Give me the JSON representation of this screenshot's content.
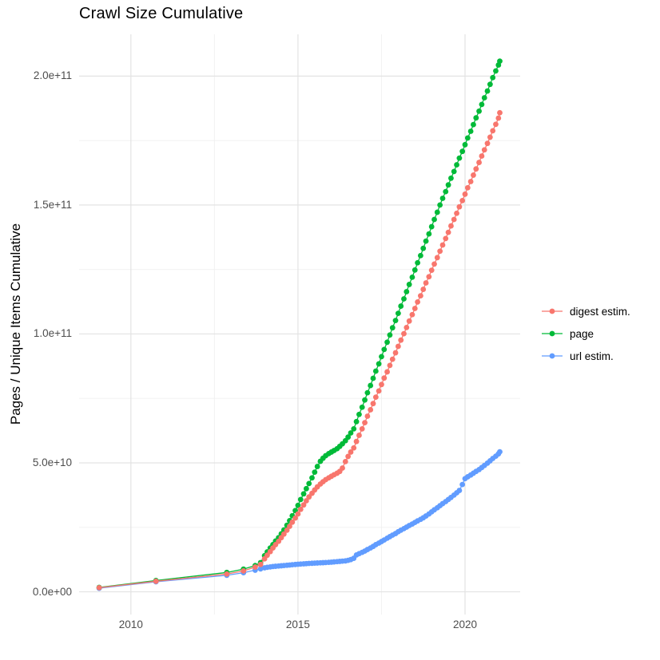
{
  "chart_data": {
    "type": "scatter",
    "title": "Crawl Size Cumulative",
    "xlabel": "",
    "ylabel": "Pages / Unique Items Cumulative",
    "value_unit": "billions (1e9) of pages / unique items",
    "xlim": [
      2008.45,
      2021.65
    ],
    "ylim": [
      -8.8,
      216.2
    ],
    "grid": "on",
    "legend_position": "right",
    "x_ticks": [
      {
        "value": 2010,
        "label": "2010"
      },
      {
        "value": 2015,
        "label": "2015"
      },
      {
        "value": 2020,
        "label": "2020"
      }
    ],
    "x_minor": [
      2012.5,
      2017.5
    ],
    "y_ticks": [
      {
        "value": 0,
        "label": "0.0e+00"
      },
      {
        "value": 50,
        "label": "5.0e+10"
      },
      {
        "value": 100,
        "label": "1.0e+11"
      },
      {
        "value": 150,
        "label": "1.5e+11"
      },
      {
        "value": 200,
        "label": "2.0e+11"
      }
    ],
    "y_minor": [
      25,
      75,
      125,
      175
    ],
    "legend": [
      {
        "label": "digest estim.",
        "color": "#F8766D"
      },
      {
        "label": "page",
        "color": "#00BA38"
      },
      {
        "label": "url estim.",
        "color": "#619CFF"
      }
    ],
    "series": [
      {
        "name": "url estim.",
        "color": "#619CFF",
        "points": [
          [
            2009.05,
            1.4
          ],
          [
            2010.75,
            3.9
          ],
          [
            2012.87,
            6.4
          ],
          [
            2013.37,
            7.4
          ],
          [
            2013.72,
            8.4
          ],
          [
            2013.88,
            8.9
          ],
          [
            2014.0,
            9.3
          ],
          [
            2014.08,
            9.5
          ],
          [
            2014.17,
            9.65
          ],
          [
            2014.25,
            9.8
          ],
          [
            2014.33,
            9.9
          ],
          [
            2014.42,
            10.0
          ],
          [
            2014.5,
            10.1
          ],
          [
            2014.58,
            10.2
          ],
          [
            2014.67,
            10.3
          ],
          [
            2014.75,
            10.4
          ],
          [
            2014.83,
            10.5
          ],
          [
            2014.92,
            10.6
          ],
          [
            2015.0,
            10.7
          ],
          [
            2015.08,
            10.78
          ],
          [
            2015.17,
            10.85
          ],
          [
            2015.25,
            10.92
          ],
          [
            2015.33,
            11.0
          ],
          [
            2015.42,
            11.06
          ],
          [
            2015.5,
            11.12
          ],
          [
            2015.58,
            11.18
          ],
          [
            2015.67,
            11.24
          ],
          [
            2015.75,
            11.3
          ],
          [
            2015.83,
            11.36
          ],
          [
            2015.92,
            11.43
          ],
          [
            2016.0,
            11.5
          ],
          [
            2016.08,
            11.6
          ],
          [
            2016.17,
            11.7
          ],
          [
            2016.25,
            11.8
          ],
          [
            2016.33,
            11.9
          ],
          [
            2016.42,
            12.0
          ],
          [
            2016.5,
            12.2
          ],
          [
            2016.58,
            12.5
          ],
          [
            2016.67,
            13.0
          ],
          [
            2016.75,
            14.3
          ],
          [
            2016.83,
            14.8
          ],
          [
            2016.92,
            15.3
          ],
          [
            2017.0,
            15.8
          ],
          [
            2017.08,
            16.4
          ],
          [
            2017.17,
            17.0
          ],
          [
            2017.25,
            17.6
          ],
          [
            2017.33,
            18.3
          ],
          [
            2017.42,
            18.9
          ],
          [
            2017.5,
            19.5
          ],
          [
            2017.58,
            20.1
          ],
          [
            2017.67,
            20.8
          ],
          [
            2017.75,
            21.4
          ],
          [
            2017.83,
            22.0
          ],
          [
            2017.92,
            22.6
          ],
          [
            2018.0,
            23.3
          ],
          [
            2018.08,
            23.9
          ],
          [
            2018.17,
            24.5
          ],
          [
            2018.25,
            25.1
          ],
          [
            2018.33,
            25.7
          ],
          [
            2018.42,
            26.3
          ],
          [
            2018.5,
            26.9
          ],
          [
            2018.58,
            27.5
          ],
          [
            2018.67,
            28.1
          ],
          [
            2018.75,
            28.7
          ],
          [
            2018.83,
            29.4
          ],
          [
            2018.92,
            30.2
          ],
          [
            2019.0,
            31.0
          ],
          [
            2019.08,
            31.8
          ],
          [
            2019.17,
            32.6
          ],
          [
            2019.25,
            33.4
          ],
          [
            2019.33,
            34.2
          ],
          [
            2019.42,
            35.0
          ],
          [
            2019.5,
            35.8
          ],
          [
            2019.58,
            36.6
          ],
          [
            2019.67,
            37.5
          ],
          [
            2019.75,
            38.4
          ],
          [
            2019.83,
            39.3
          ],
          [
            2019.92,
            41.6
          ],
          [
            2020.0,
            43.9
          ],
          [
            2020.08,
            44.6
          ],
          [
            2020.17,
            45.3
          ],
          [
            2020.25,
            46.0
          ],
          [
            2020.33,
            46.7
          ],
          [
            2020.42,
            47.4
          ],
          [
            2020.5,
            48.2
          ],
          [
            2020.58,
            49.0
          ],
          [
            2020.67,
            49.9
          ],
          [
            2020.75,
            50.8
          ],
          [
            2020.83,
            51.7
          ],
          [
            2020.92,
            52.6
          ],
          [
            2021.0,
            53.5
          ],
          [
            2021.04,
            54.3
          ]
        ]
      },
      {
        "name": "page",
        "color": "#00BA38",
        "points": [
          [
            2009.05,
            1.7
          ],
          [
            2010.75,
            4.4
          ],
          [
            2012.87,
            7.5
          ],
          [
            2013.37,
            8.8
          ],
          [
            2013.72,
            10.2
          ],
          [
            2013.88,
            11.3
          ],
          [
            2014.0,
            14.0
          ],
          [
            2014.08,
            15.5
          ],
          [
            2014.17,
            17.0
          ],
          [
            2014.25,
            18.3
          ],
          [
            2014.33,
            19.7
          ],
          [
            2014.42,
            21.0
          ],
          [
            2014.5,
            22.5
          ],
          [
            2014.58,
            24.0
          ],
          [
            2014.67,
            25.8
          ],
          [
            2014.75,
            27.6
          ],
          [
            2014.83,
            29.5
          ],
          [
            2014.92,
            31.5
          ],
          [
            2015.0,
            33.5
          ],
          [
            2015.08,
            35.8
          ],
          [
            2015.17,
            38.0
          ],
          [
            2015.25,
            40.0
          ],
          [
            2015.33,
            42.0
          ],
          [
            2015.42,
            44.2
          ],
          [
            2015.5,
            46.4
          ],
          [
            2015.58,
            48.6
          ],
          [
            2015.67,
            50.6
          ],
          [
            2015.75,
            51.8
          ],
          [
            2015.83,
            52.8
          ],
          [
            2015.92,
            53.6
          ],
          [
            2016.0,
            54.2
          ],
          [
            2016.08,
            54.8
          ],
          [
            2016.17,
            55.5
          ],
          [
            2016.25,
            56.4
          ],
          [
            2016.33,
            57.4
          ],
          [
            2016.42,
            58.6
          ],
          [
            2016.5,
            60.0
          ],
          [
            2016.58,
            61.6
          ],
          [
            2016.67,
            63.2
          ],
          [
            2016.75,
            66.0
          ],
          [
            2016.83,
            68.8
          ],
          [
            2016.92,
            71.6
          ],
          [
            2017.0,
            74.4
          ],
          [
            2017.08,
            77.2
          ],
          [
            2017.17,
            80.0
          ],
          [
            2017.25,
            82.8
          ],
          [
            2017.33,
            85.6
          ],
          [
            2017.42,
            88.4
          ],
          [
            2017.5,
            91.2
          ],
          [
            2017.58,
            94.0
          ],
          [
            2017.67,
            96.8
          ],
          [
            2017.75,
            99.6
          ],
          [
            2017.83,
            102.4
          ],
          [
            2017.92,
            105.2
          ],
          [
            2018.0,
            108.0
          ],
          [
            2018.08,
            110.8
          ],
          [
            2018.17,
            113.6
          ],
          [
            2018.25,
            116.4
          ],
          [
            2018.33,
            119.2
          ],
          [
            2018.42,
            122.0
          ],
          [
            2018.5,
            124.8
          ],
          [
            2018.58,
            127.6
          ],
          [
            2018.67,
            130.4
          ],
          [
            2018.75,
            133.2
          ],
          [
            2018.83,
            136.0
          ],
          [
            2018.92,
            138.8
          ],
          [
            2019.0,
            141.6
          ],
          [
            2019.08,
            144.4
          ],
          [
            2019.17,
            147.2
          ],
          [
            2019.25,
            150.0
          ],
          [
            2019.33,
            152.6
          ],
          [
            2019.42,
            155.2
          ],
          [
            2019.5,
            157.8
          ],
          [
            2019.58,
            160.4
          ],
          [
            2019.67,
            163.0
          ],
          [
            2019.75,
            165.6
          ],
          [
            2019.83,
            168.2
          ],
          [
            2019.92,
            170.8
          ],
          [
            2020.0,
            173.4
          ],
          [
            2020.08,
            176.0
          ],
          [
            2020.17,
            178.6
          ],
          [
            2020.25,
            181.2
          ],
          [
            2020.33,
            183.8
          ],
          [
            2020.42,
            186.4
          ],
          [
            2020.5,
            189.0
          ],
          [
            2020.58,
            191.6
          ],
          [
            2020.67,
            194.2
          ],
          [
            2020.75,
            196.8
          ],
          [
            2020.83,
            199.4
          ],
          [
            2020.92,
            202.0
          ],
          [
            2021.0,
            204.3
          ],
          [
            2021.04,
            205.8
          ]
        ]
      },
      {
        "name": "digest estim.",
        "color": "#F8766D",
        "points": [
          [
            2009.05,
            1.6
          ],
          [
            2010.75,
            4.1
          ],
          [
            2012.87,
            6.9
          ],
          [
            2013.37,
            8.1
          ],
          [
            2013.72,
            9.6
          ],
          [
            2013.88,
            10.6
          ],
          [
            2014.0,
            12.8
          ],
          [
            2014.08,
            14.2
          ],
          [
            2014.17,
            15.6
          ],
          [
            2014.25,
            17.0
          ],
          [
            2014.33,
            18.3
          ],
          [
            2014.42,
            19.6
          ],
          [
            2014.5,
            21.0
          ],
          [
            2014.58,
            22.4
          ],
          [
            2014.67,
            23.9
          ],
          [
            2014.75,
            25.4
          ],
          [
            2014.83,
            27.0
          ],
          [
            2014.92,
            28.6
          ],
          [
            2015.0,
            30.2
          ],
          [
            2015.08,
            32.0
          ],
          [
            2015.17,
            33.7
          ],
          [
            2015.25,
            35.3
          ],
          [
            2015.33,
            36.8
          ],
          [
            2015.42,
            38.2
          ],
          [
            2015.5,
            39.5
          ],
          [
            2015.58,
            40.7
          ],
          [
            2015.67,
            41.8
          ],
          [
            2015.75,
            42.7
          ],
          [
            2015.83,
            43.5
          ],
          [
            2015.92,
            44.2
          ],
          [
            2016.0,
            44.8
          ],
          [
            2016.08,
            45.4
          ],
          [
            2016.17,
            46.0
          ],
          [
            2016.25,
            46.7
          ],
          [
            2016.33,
            48.0
          ],
          [
            2016.42,
            50.5
          ],
          [
            2016.5,
            52.5
          ],
          [
            2016.58,
            54.2
          ],
          [
            2016.67,
            55.8
          ],
          [
            2016.75,
            58.3
          ],
          [
            2016.83,
            60.7
          ],
          [
            2016.92,
            63.2
          ],
          [
            2017.0,
            65.6
          ],
          [
            2017.08,
            68.1
          ],
          [
            2017.17,
            70.6
          ],
          [
            2017.25,
            73.0
          ],
          [
            2017.33,
            75.5
          ],
          [
            2017.42,
            77.9
          ],
          [
            2017.5,
            80.4
          ],
          [
            2017.58,
            82.9
          ],
          [
            2017.67,
            85.3
          ],
          [
            2017.75,
            87.8
          ],
          [
            2017.83,
            90.2
          ],
          [
            2017.92,
            92.7
          ],
          [
            2018.0,
            95.2
          ],
          [
            2018.08,
            97.6
          ],
          [
            2018.17,
            100.1
          ],
          [
            2018.25,
            102.5
          ],
          [
            2018.33,
            105.0
          ],
          [
            2018.42,
            107.5
          ],
          [
            2018.5,
            109.9
          ],
          [
            2018.58,
            112.4
          ],
          [
            2018.67,
            114.8
          ],
          [
            2018.75,
            117.3
          ],
          [
            2018.83,
            119.8
          ],
          [
            2018.92,
            122.2
          ],
          [
            2019.0,
            124.7
          ],
          [
            2019.08,
            127.1
          ],
          [
            2019.17,
            129.6
          ],
          [
            2019.25,
            132.1
          ],
          [
            2019.33,
            134.5
          ],
          [
            2019.42,
            137.0
          ],
          [
            2019.5,
            139.4
          ],
          [
            2019.58,
            141.9
          ],
          [
            2019.67,
            144.4
          ],
          [
            2019.75,
            146.8
          ],
          [
            2019.83,
            149.3
          ],
          [
            2019.92,
            151.7
          ],
          [
            2020.0,
            154.2
          ],
          [
            2020.08,
            156.7
          ],
          [
            2020.17,
            159.1
          ],
          [
            2020.25,
            161.6
          ],
          [
            2020.33,
            164.0
          ],
          [
            2020.42,
            166.5
          ],
          [
            2020.5,
            169.0
          ],
          [
            2020.58,
            171.4
          ],
          [
            2020.67,
            173.9
          ],
          [
            2020.75,
            176.3
          ],
          [
            2020.83,
            178.8
          ],
          [
            2020.92,
            181.3
          ],
          [
            2021.0,
            183.7
          ],
          [
            2021.04,
            185.8
          ]
        ]
      }
    ],
    "style": {
      "major_grid_color": "#e3e3e3",
      "minor_grid_color": "#f0f0f0",
      "background": "#ffffff",
      "point_radius": 3.4
    }
  }
}
